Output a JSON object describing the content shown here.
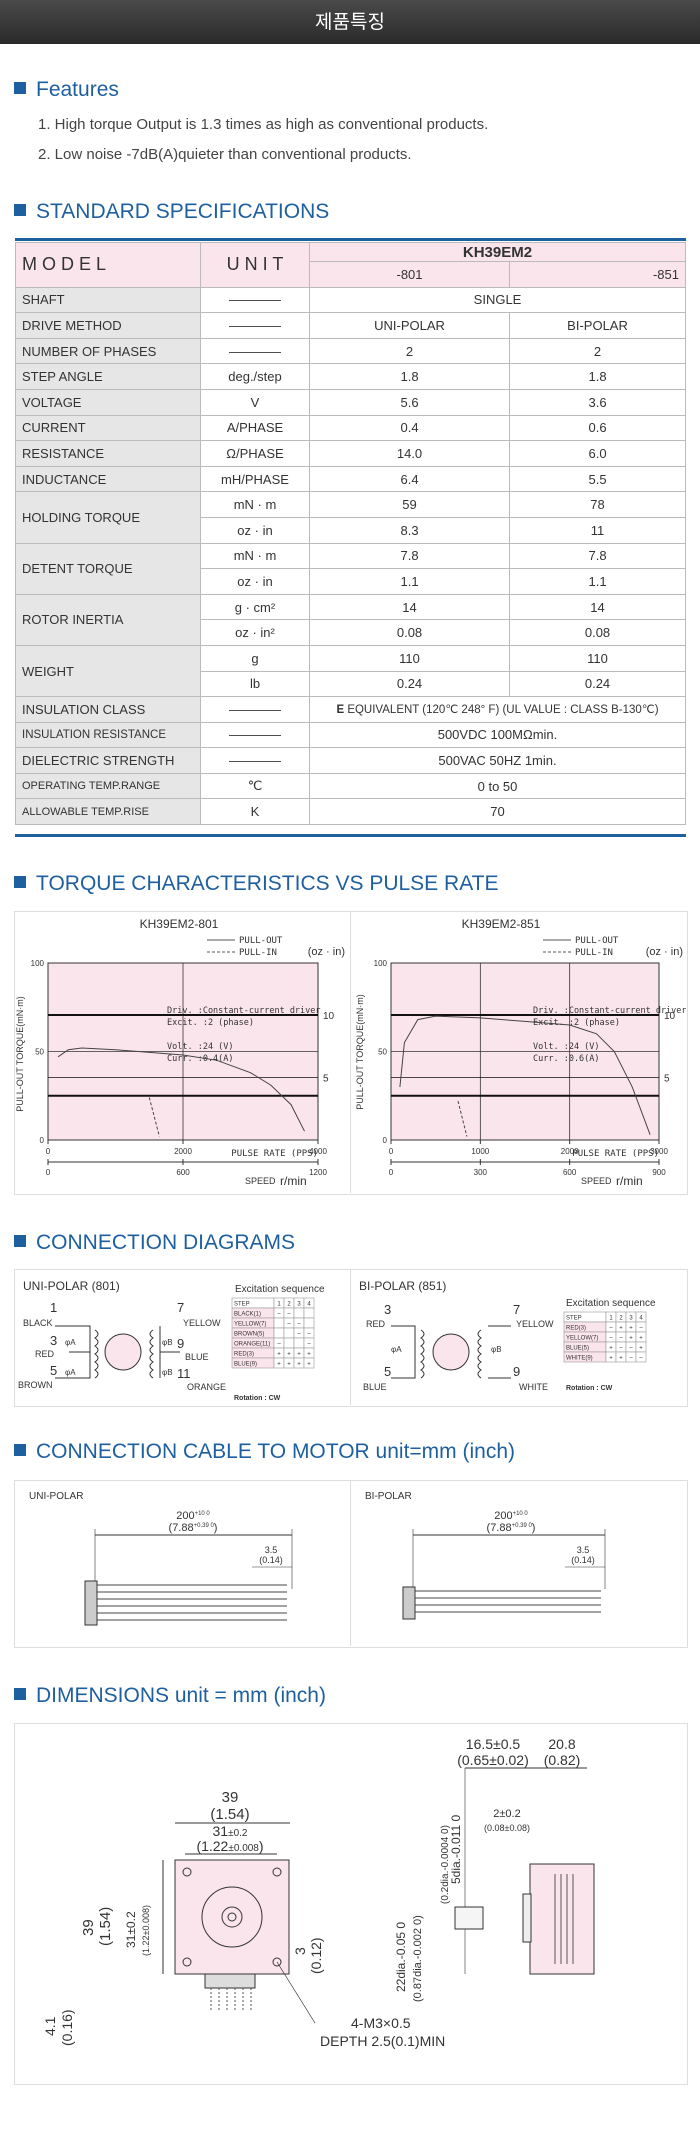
{
  "header": {
    "title": "제품특징"
  },
  "features": {
    "heading": "Features",
    "items": [
      "1. High torque Output is 1.3 times as high as conventional products.",
      "2. Low noise -7dB(A)quieter than conventional products."
    ]
  },
  "specs": {
    "heading": "STANDARD SPECIFICATIONS",
    "col_model": "M O D E L",
    "col_unit": "U N I T",
    "model_name": "KH39EM2",
    "variant_a": "-801",
    "variant_b": "-851",
    "dash": "————",
    "rows": {
      "shaft": {
        "label": "SHAFT",
        "value": "SINGLE"
      },
      "drive": {
        "label": "DRIVE METHOD",
        "a": "UNI-POLAR",
        "b": "BI-POLAR"
      },
      "phases": {
        "label": "NUMBER OF PHASES",
        "a": "2",
        "b": "2"
      },
      "step": {
        "label": "STEP ANGLE",
        "unit": "deg./step",
        "a": "1.8",
        "b": "1.8"
      },
      "voltage": {
        "label": "VOLTAGE",
        "unit": "V",
        "a": "5.6",
        "b": "3.6"
      },
      "current": {
        "label": "CURRENT",
        "unit": "A/PHASE",
        "a": "0.4",
        "b": "0.6"
      },
      "resistance": {
        "label": "RESISTANCE",
        "unit": "Ω/PHASE",
        "a": "14.0",
        "b": "6.0"
      },
      "inductance": {
        "label": "INDUCTANCE",
        "unit": "mH/PHASE",
        "a": "6.4",
        "b": "5.5"
      },
      "holding": {
        "label": "HOLDING TORQUE",
        "unit1": "mN · m",
        "a1": "59",
        "b1": "78",
        "unit2": "oz · in",
        "a2": "8.3",
        "b2": "11"
      },
      "detent": {
        "label": "DETENT TORQUE",
        "unit1": "mN · m",
        "a1": "7.8",
        "b1": "7.8",
        "unit2": "oz · in",
        "a2": "1.1",
        "b2": "1.1"
      },
      "inertia": {
        "label": "ROTOR INERTIA",
        "unit1": "g · cm²",
        "a1": "14",
        "b1": "14",
        "unit2": "oz · in²",
        "a2": "0.08",
        "b2": "0.08"
      },
      "weight": {
        "label": "WEIGHT",
        "unit1": "g",
        "a1": "110",
        "b1": "110",
        "unit2": "lb",
        "a2": "0.24",
        "b2": "0.24"
      },
      "insulation_class": {
        "label": "INSULATION CLASS",
        "value_e": "E",
        "value": " EQUIVALENT (120℃ 248° F) (UL VALUE : CLASS B-130℃)"
      },
      "insulation_res": {
        "label": "INSULATION RESISTANCE",
        "value": "500VDC 100MΩmin."
      },
      "dielectric": {
        "label": "DIELECTRIC STRENGTH",
        "value": "500VAC 50HZ 1min."
      },
      "op_temp": {
        "label": "OPERATING TEMP.RANGE",
        "unit": "℃",
        "value": "0 to 50"
      },
      "temp_rise": {
        "label": "ALLOWABLE TEMP.RISE",
        "unit": "K",
        "value": "70"
      }
    }
  },
  "torque": {
    "heading": "TORQUE CHARACTERISTICS VS PULSE RATE",
    "legend_pullout": "PULL-OUT",
    "legend_pullin": "PULL-IN",
    "right_unit": "(oz · in)",
    "y_label": "PULL-OUT TORQUE(mN·m)",
    "pulse_label": "PULSE RATE (PPS)",
    "speed_label": "SPEED",
    "speed_unit": "r/min",
    "driv": "Driv. :Constant-current driver",
    "excit": "Excit. :2 (phase)",
    "charts": [
      {
        "title": "KH39EM2-801",
        "volt": "Volt. :24 (V)",
        "curr": "Curr. :0.4(A)"
      },
      {
        "title": "KH39EM2-851",
        "volt": "Volt. :24 (V)",
        "curr": "Curr. :0.6(A)"
      }
    ]
  },
  "chart_data": [
    {
      "type": "line",
      "title": "KH39EM2-801",
      "xlabel": "PULSE RATE (PPS)",
      "ylabel": "PULL-OUT TORQUE(mN·m)",
      "xlim": [
        0,
        4000
      ],
      "ylim": [
        0,
        100
      ],
      "x_ticks": [
        "0",
        "2000",
        "4000"
      ],
      "y_ticks": [
        "0",
        "50",
        "100"
      ],
      "y2_ticks": [
        "5",
        "10"
      ],
      "speed_ticks": [
        "0",
        "600",
        "1200"
      ],
      "series": [
        {
          "name": "PULL-OUT",
          "x": [
            150,
            300,
            500,
            1000,
            1500,
            2000,
            2500,
            3000,
            3300,
            3600,
            3800
          ],
          "y": [
            47,
            51,
            52,
            51,
            49.5,
            48,
            45,
            38,
            31,
            20,
            5
          ]
        },
        {
          "name": "PULL-IN",
          "x": [
            1500,
            1650
          ],
          "y": [
            24,
            2
          ]
        }
      ]
    },
    {
      "type": "line",
      "title": "KH39EM2-851",
      "xlabel": "PULSE RATE (PPS)",
      "ylabel": "PULL-OUT TORQUE(mN·m)",
      "xlim": [
        0,
        3000
      ],
      "ylim": [
        0,
        100
      ],
      "x_ticks": [
        "0",
        "1000",
        "2000",
        "3000"
      ],
      "y_ticks": [
        "0",
        "50",
        "100"
      ],
      "y2_ticks": [
        "5",
        "10"
      ],
      "speed_ticks": [
        "0",
        "300",
        "600",
        "900"
      ],
      "series": [
        {
          "name": "PULL-OUT",
          "x": [
            100,
            150,
            300,
            500,
            1000,
            1500,
            2000,
            2300,
            2500,
            2700,
            2900
          ],
          "y": [
            30,
            55,
            68,
            70,
            69,
            67,
            65,
            60,
            50,
            30,
            3
          ]
        },
        {
          "name": "PULL-IN",
          "x": [
            750,
            850
          ],
          "y": [
            22,
            2
          ]
        }
      ]
    }
  ],
  "connection": {
    "heading": "CONNECTION DIAGRAMS",
    "uni_title": "UNI-POLAR (801)",
    "bi_title": "BI-POLAR (851)",
    "excitation_title": "Excitation sequence",
    "rotation": "Rotation : CW",
    "uni_labels": {
      "n1": "1",
      "n3": "3",
      "n5": "5",
      "n7": "7",
      "n9": "9",
      "n11": "11",
      "black": "BLACK",
      "red": "RED",
      "brown": "BROWN",
      "yellow": "YELLOW",
      "blue": "BLUE",
      "orange": "ORANGE",
      "phA": "φA",
      "phB": "φB"
    },
    "bi_labels": {
      "n3": "3",
      "n5": "5",
      "n7": "7",
      "n9": "9",
      "red": "RED",
      "blue": "BLUE",
      "yellow": "YELLOW",
      "white": "WHITE",
      "phA": "φA",
      "phB": "φB"
    },
    "uni_table": {
      "header": [
        "STEP",
        "1",
        "2",
        "3",
        "4"
      ],
      "rows": [
        [
          "BLACK(1)",
          "–",
          "–",
          "",
          ""
        ],
        [
          "YELLOW(7)",
          "",
          "–",
          "–",
          ""
        ],
        [
          "BROWN(5)",
          "",
          "",
          "–",
          "–"
        ],
        [
          "ORANGE(11)",
          "–",
          "",
          "",
          "–"
        ],
        [
          "RED(3)",
          "+",
          "+",
          "+",
          "+"
        ],
        [
          "BLUE(9)",
          "+",
          "+",
          "+",
          "+"
        ]
      ]
    },
    "bi_table": {
      "header": [
        "STEP",
        "1",
        "2",
        "3",
        "4"
      ],
      "rows": [
        [
          "RED(3)",
          "–",
          "+",
          "+",
          "–"
        ],
        [
          "YELLOW(7)",
          "–",
          "–",
          "+",
          "+"
        ],
        [
          "BLUE(5)",
          "+",
          "–",
          "–",
          "+"
        ],
        [
          "WHITE(9)",
          "+",
          "+",
          "–",
          "–"
        ]
      ]
    }
  },
  "cable": {
    "heading": "CONNECTION CABLE TO MOTOR unit=mm (inch)",
    "uni": "UNI-POLAR",
    "bi": "BI-POLAR",
    "len": "200",
    "len_tol": "+10 0",
    "len_in": "(7.88",
    "len_in_tol": "+0.39 0",
    "len_close": ")",
    "strip": "3.5",
    "strip_in": "(0.14)"
  },
  "dimensions": {
    "heading": "DIMENSIONS unit = mm (inch)",
    "w39": "39",
    "w39_in": "(1.54)",
    "w31": "31",
    "w31_tol": "±0.2",
    "w31_in": "(1.22",
    "w31_in_tol": "±0.008",
    "w31_close": ")",
    "h39": "39",
    "h39_in": "(1.54)",
    "h31": "31±0.2",
    "h31_in": "(1.22±0.008)",
    "d3": "3",
    "d3_in": "(0.12)",
    "d41": "4.1",
    "d41_in": "(0.16)",
    "holes": "4-M3×0.5",
    "depth": "DEPTH 2.5(0.1)MIN",
    "l165": "16.5±0.5",
    "l165_in": "(0.65±0.02)",
    "l208": "20.8",
    "l208_in": "(0.82)",
    "l2": "2±0.2",
    "l2_in": "(0.08±0.08)",
    "shaft5": "5dia.-0.011 0",
    "shaft5_in": "(0.2dia.-0.0004 0)",
    "boss22": "22dia.-0.05 0",
    "boss22_in": "(0.87dia.-0.002 0)"
  },
  "colors": {
    "accent": "#1e5f9f",
    "pink": "#fbe5ec",
    "label_bg": "#e6e6e6"
  }
}
